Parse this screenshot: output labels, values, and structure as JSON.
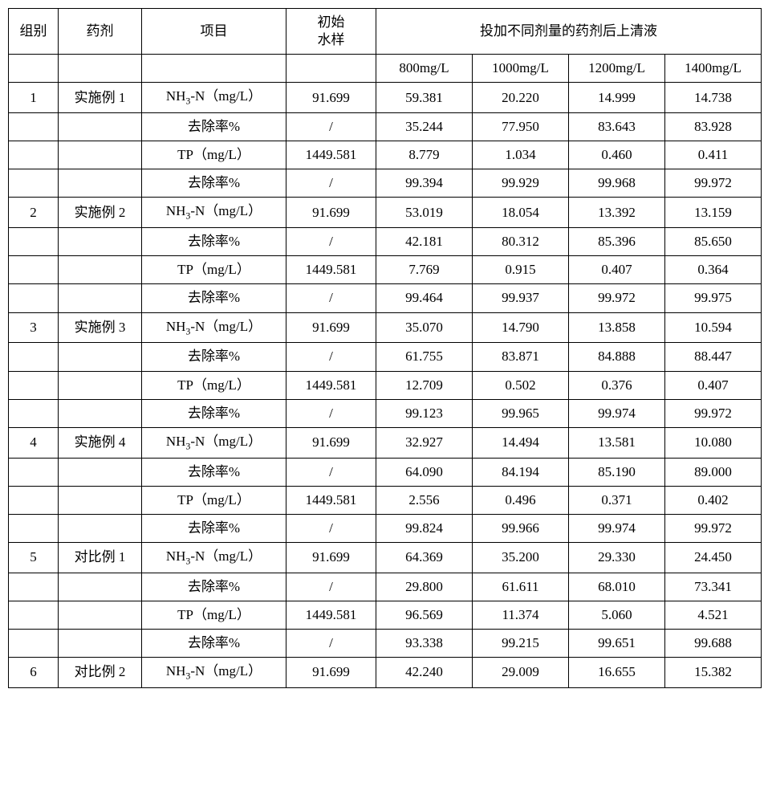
{
  "head": {
    "group": "组别",
    "agent": "药剂",
    "item": "项目",
    "initial": "初始\n水样",
    "supernatant": "投加不同剂量的药剂后上清液",
    "doses": [
      "800mg/L",
      "1000mg/L",
      "1200mg/L",
      "1400mg/L"
    ]
  },
  "labels": {
    "nh3n": "NH₃-N（mg/L）",
    "removal": "去除率%",
    "tp": "TP（mg/L）"
  },
  "initial": {
    "nh3n": "91.699",
    "tp": "1449.581",
    "slash": "/"
  },
  "groups": [
    {
      "id": "1",
      "agent": "实施例 1",
      "nh3n": [
        "59.381",
        "20.220",
        "14.999",
        "14.738"
      ],
      "nh3nR": [
        "35.244",
        "77.950",
        "83.643",
        "83.928"
      ],
      "tp": [
        "8.779",
        "1.034",
        "0.460",
        "0.411"
      ],
      "tpR": [
        "99.394",
        "99.929",
        "99.968",
        "99.972"
      ]
    },
    {
      "id": "2",
      "agent": "实施例 2",
      "nh3n": [
        "53.019",
        "18.054",
        "13.392",
        "13.159"
      ],
      "nh3nR": [
        "42.181",
        "80.312",
        "85.396",
        "85.650"
      ],
      "tp": [
        "7.769",
        "0.915",
        "0.407",
        "0.364"
      ],
      "tpR": [
        "99.464",
        "99.937",
        "99.972",
        "99.975"
      ]
    },
    {
      "id": "3",
      "agent": "实施例 3",
      "nh3n": [
        "35.070",
        "14.790",
        "13.858",
        "10.594"
      ],
      "nh3nR": [
        "61.755",
        "83.871",
        "84.888",
        "88.447"
      ],
      "tp": [
        "12.709",
        "0.502",
        "0.376",
        "0.407"
      ],
      "tpR": [
        "99.123",
        "99.965",
        "99.974",
        "99.972"
      ]
    },
    {
      "id": "4",
      "agent": "实施例 4",
      "nh3n": [
        "32.927",
        "14.494",
        "13.581",
        "10.080"
      ],
      "nh3nR": [
        "64.090",
        "84.194",
        "85.190",
        "89.000"
      ],
      "tp": [
        "2.556",
        "0.496",
        "0.371",
        "0.402"
      ],
      "tpR": [
        "99.824",
        "99.966",
        "99.974",
        "99.972"
      ]
    },
    {
      "id": "5",
      "agent": "对比例 1",
      "nh3n": [
        "64.369",
        "35.200",
        "29.330",
        "24.450"
      ],
      "nh3nR": [
        "29.800",
        "61.611",
        "68.010",
        "73.341"
      ],
      "tp": [
        "96.569",
        "11.374",
        "5.060",
        "4.521"
      ],
      "tpR": [
        "93.338",
        "99.215",
        "99.651",
        "99.688"
      ]
    },
    {
      "id": "6",
      "agent": "对比例 2",
      "nh3n": [
        "42.240",
        "29.009",
        "16.655",
        "15.382"
      ],
      "truncated": true
    }
  ]
}
